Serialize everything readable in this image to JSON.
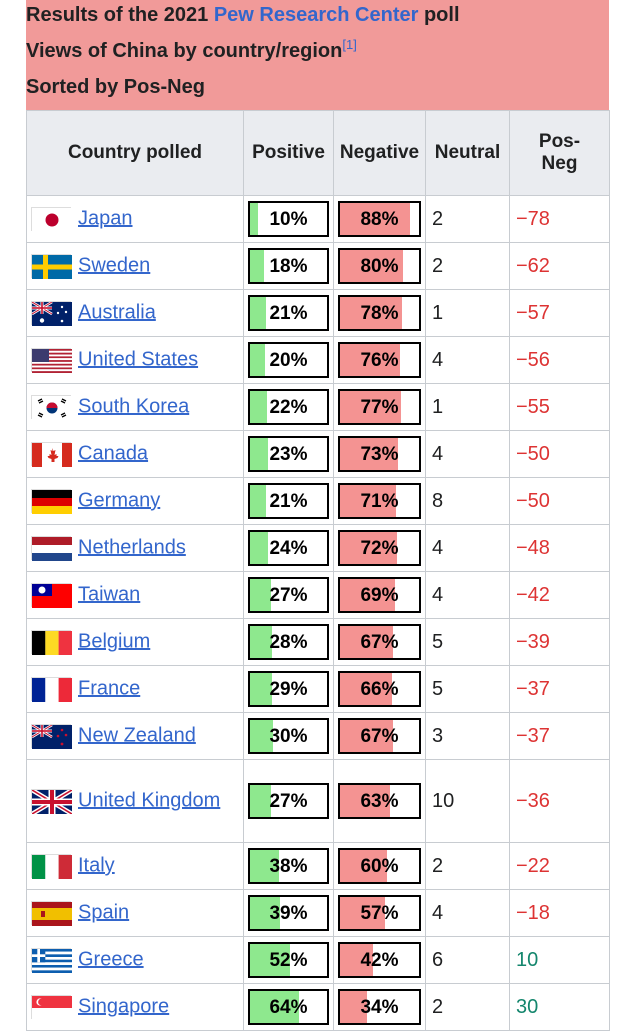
{
  "caption": {
    "line1_prefix": "Results of the 2021 ",
    "line1_link": "Pew Research Center",
    "line1_suffix": " poll",
    "line2": "Views of China by country/region",
    "line2_ref": "[1]",
    "line3": "Sorted by Pos-Neg"
  },
  "headers": {
    "country": "Country polled",
    "positive": "Positive",
    "negative": "Negative",
    "neutral": "Neutral",
    "posneg_1": "Pos-",
    "posneg_2": "Neg"
  },
  "colors": {
    "caption_bg": "#f19a99",
    "positive_bar": "#8ee88e",
    "negative_bar": "#f49392",
    "negative_value": "#dd3333",
    "positive_value": "#14866d",
    "link": "#3366cc"
  },
  "rows": [
    {
      "country": "Japan",
      "flag": "japan-flag-icon",
      "positive": "10%",
      "negative": "88%",
      "neutral": "2",
      "posneg": "−78"
    },
    {
      "country": "Sweden",
      "flag": "sweden-flag-icon",
      "positive": "18%",
      "negative": "80%",
      "neutral": "2",
      "posneg": "−62"
    },
    {
      "country": "Australia",
      "flag": "australia-flag-icon",
      "positive": "21%",
      "negative": "78%",
      "neutral": "1",
      "posneg": "−57"
    },
    {
      "country": "United States",
      "flag": "united-states-flag-icon",
      "positive": "20%",
      "negative": "76%",
      "neutral": "4",
      "posneg": "−56"
    },
    {
      "country": "South Korea",
      "flag": "south-korea-flag-icon",
      "positive": "22%",
      "negative": "77%",
      "neutral": "1",
      "posneg": "−55"
    },
    {
      "country": "Canada",
      "flag": "canada-flag-icon",
      "positive": "23%",
      "negative": "73%",
      "neutral": "4",
      "posneg": "−50"
    },
    {
      "country": "Germany",
      "flag": "germany-flag-icon",
      "positive": "21%",
      "negative": "71%",
      "neutral": "8",
      "posneg": "−50"
    },
    {
      "country": "Netherlands",
      "flag": "netherlands-flag-icon",
      "positive": "24%",
      "negative": "72%",
      "neutral": "4",
      "posneg": "−48"
    },
    {
      "country": "Taiwan",
      "flag": "taiwan-flag-icon",
      "positive": "27%",
      "negative": "69%",
      "neutral": "4",
      "posneg": "−42"
    },
    {
      "country": "Belgium",
      "flag": "belgium-flag-icon",
      "positive": "28%",
      "negative": "67%",
      "neutral": "5",
      "posneg": "−39"
    },
    {
      "country": "France",
      "flag": "france-flag-icon",
      "positive": "29%",
      "negative": "66%",
      "neutral": "5",
      "posneg": "−37"
    },
    {
      "country": "New Zealand",
      "flag": "new-zealand-flag-icon",
      "positive": "30%",
      "negative": "67%",
      "neutral": "3",
      "posneg": "−37"
    },
    {
      "country": "United Kingdom",
      "flag": "united-kingdom-flag-icon",
      "positive": "27%",
      "negative": "63%",
      "neutral": "10",
      "posneg": "−36"
    },
    {
      "country": "Italy",
      "flag": "italy-flag-icon",
      "positive": "38%",
      "negative": "60%",
      "neutral": "2",
      "posneg": "−22"
    },
    {
      "country": "Spain",
      "flag": "spain-flag-icon",
      "positive": "39%",
      "negative": "57%",
      "neutral": "4",
      "posneg": "−18"
    },
    {
      "country": "Greece",
      "flag": "greece-flag-icon",
      "positive": "52%",
      "negative": "42%",
      "neutral": "6",
      "posneg": "10"
    },
    {
      "country": "Singapore",
      "flag": "singapore-flag-icon",
      "positive": "64%",
      "negative": "34%",
      "neutral": "2",
      "posneg": "30"
    }
  ]
}
